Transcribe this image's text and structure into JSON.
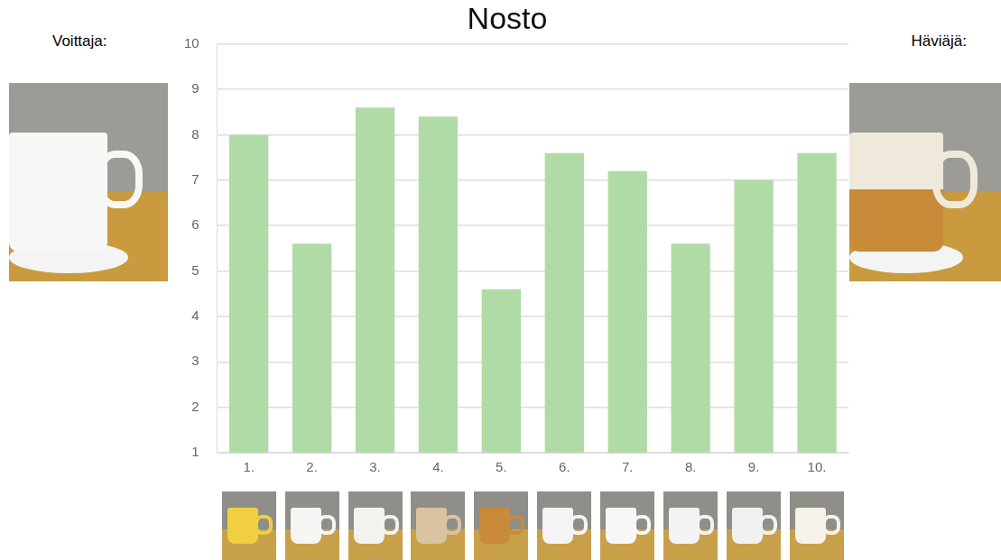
{
  "chart_data": {
    "type": "bar",
    "title": "Nosto",
    "categories": [
      "1.",
      "2.",
      "3.",
      "4.",
      "5.",
      "6.",
      "7.",
      "8.",
      "9.",
      "10."
    ],
    "values": [
      8.0,
      5.6,
      8.6,
      8.4,
      4.6,
      7.6,
      7.2,
      5.6,
      7.0,
      7.6
    ],
    "color": "#b1dba6",
    "ylim": [
      1,
      10
    ],
    "yticks": [
      1,
      2,
      3,
      4,
      5,
      6,
      7,
      8,
      9,
      10
    ],
    "grid": true,
    "annotations": [
      "Voittaja:",
      "Häviäjä:"
    ]
  }
}
